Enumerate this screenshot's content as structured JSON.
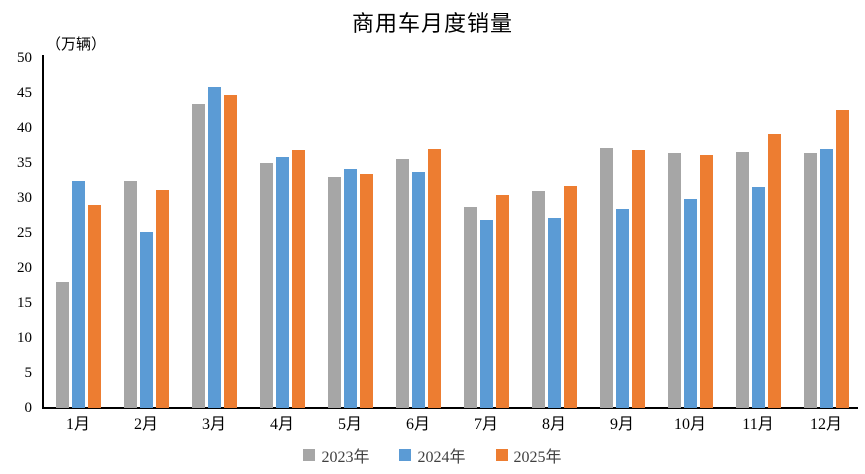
{
  "chart_data": {
    "type": "bar",
    "title": "商用车月度销量",
    "unit_label": "（万辆）",
    "categories": [
      "1月",
      "2月",
      "3月",
      "4月",
      "5月",
      "6月",
      "7月",
      "8月",
      "9月",
      "10月",
      "11月",
      "12月"
    ],
    "series": [
      {
        "name": "2023年",
        "color": "#A6A6A6",
        "values": [
          18.0,
          32.5,
          43.5,
          35.0,
          33.0,
          35.6,
          28.7,
          31.0,
          37.2,
          36.5,
          36.6,
          36.4
        ]
      },
      {
        "name": "2024年",
        "color": "#5B9BD5",
        "values": [
          32.4,
          25.1,
          45.9,
          35.8,
          34.2,
          33.7,
          26.8,
          27.2,
          28.4,
          29.8,
          31.6,
          37.0
        ]
      },
      {
        "name": "2025年",
        "color": "#ED7D31",
        "values": [
          29.0,
          31.2,
          44.7,
          36.9,
          33.5,
          37.0,
          30.5,
          31.7,
          36.8,
          36.1,
          39.2,
          42.6
        ]
      }
    ],
    "ylim": [
      0,
      50
    ],
    "ytick_step": 5,
    "grid": false,
    "legend_position": "bottom",
    "axis_color": "#000000"
  }
}
